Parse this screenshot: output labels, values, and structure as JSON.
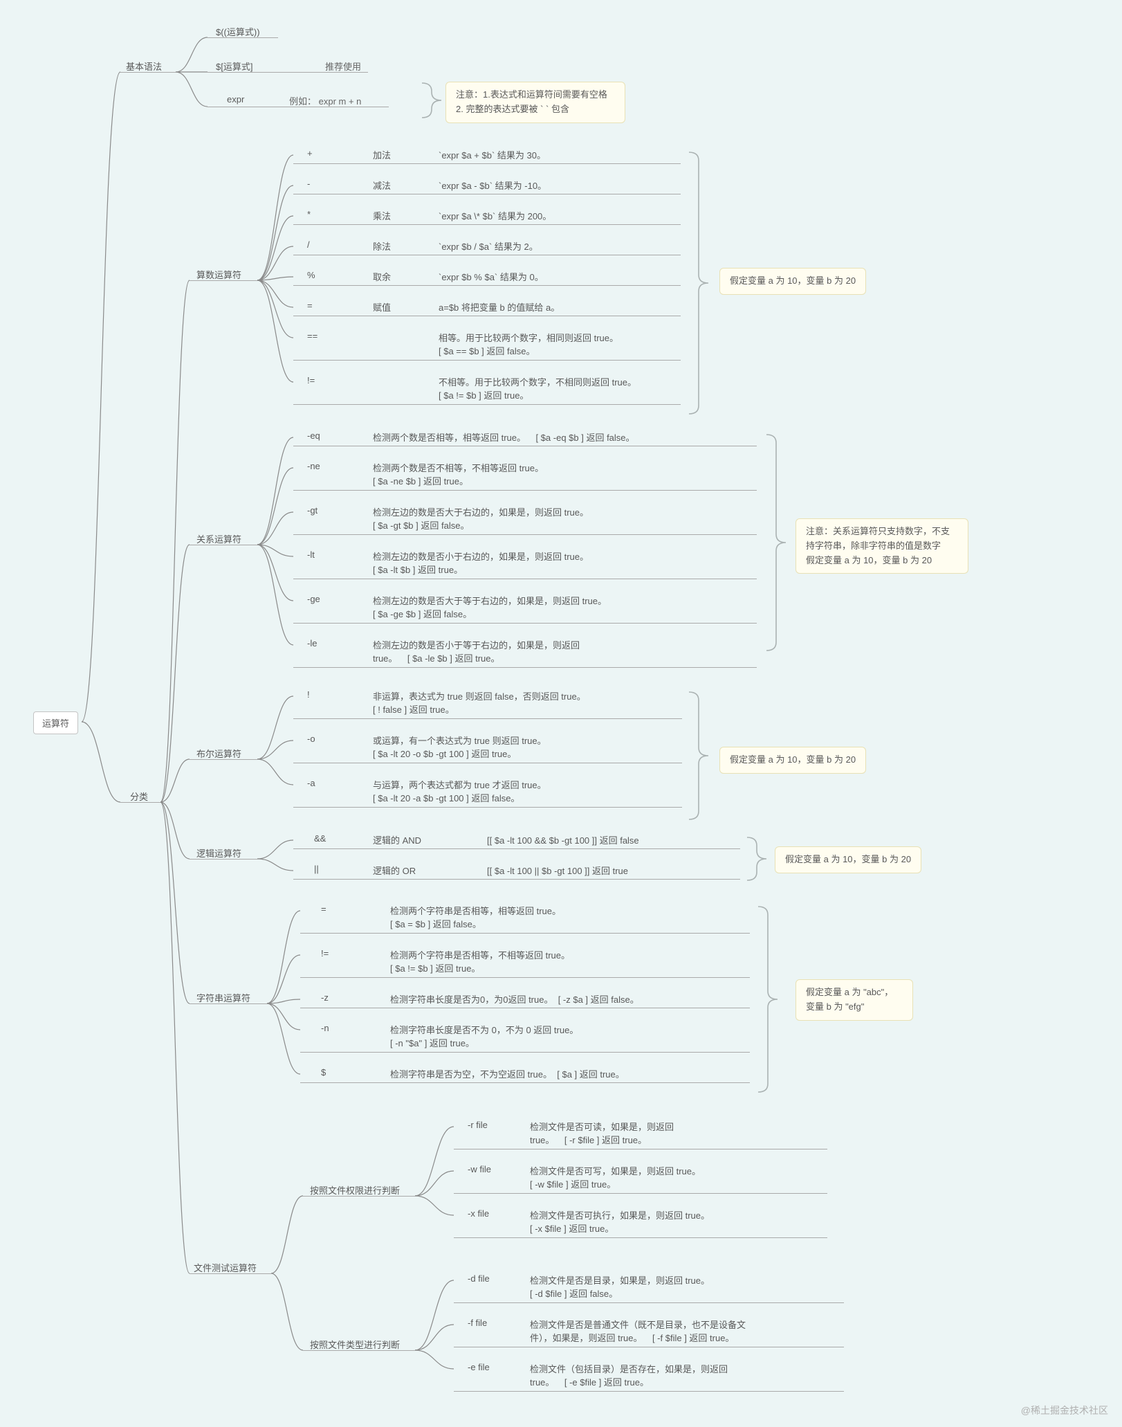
{
  "colors": {
    "bg": "#ecf5f5",
    "box_bg": "#ffffff",
    "box_border": "#c4c4c4",
    "note_bg": "#fffdf0",
    "note_border": "#e8e1b5",
    "line": "#8a8a8a",
    "text": "#595959"
  },
  "root": "运算符",
  "syntax": {
    "label": "基本语法",
    "a": "$((运算式))",
    "b": "$[运算式]",
    "b_note": "推荐使用",
    "c": "expr",
    "c_note": "例如： expr m + n",
    "warn": "注意：1.表达式和运算符间需要有空格\n2. 完整的表达式要被 ` ` 包含"
  },
  "category_label": "分类",
  "arith": {
    "label": "算数运算符",
    "assume": "假定变量 a 为 10，变量 b 为 20",
    "rows": [
      {
        "op": "+",
        "name": "加法",
        "desc": "`expr $a + $b` 结果为 30。"
      },
      {
        "op": "-",
        "name": "减法",
        "desc": "`expr $a - $b` 结果为 -10。"
      },
      {
        "op": "*",
        "name": "乘法",
        "desc": "`expr $a \\* $b` 结果为  200。"
      },
      {
        "op": "/",
        "name": "除法",
        "desc": "`expr $b / $a` 结果为 2。"
      },
      {
        "op": "%",
        "name": "取余",
        "desc": "`expr $b % $a` 结果为 0。"
      },
      {
        "op": "=",
        "name": "赋值",
        "desc": "a=$b 将把变量 b 的值赋给 a。"
      },
      {
        "op": "==",
        "name": "",
        "desc": "相等。用于比较两个数字，相同则返回 true。\n[ $a == $b ] 返回 false。"
      },
      {
        "op": "!=",
        "name": "",
        "desc": "不相等。用于比较两个数字，不相同则返回 true。\n[ $a != $b ] 返回 true。"
      }
    ]
  },
  "rel": {
    "label": "关系运算符",
    "assume": "注意：关系运算符只支持数字，不支持字符串，除非字符串的值是数字\n假定变量 a 为 10，变量 b 为 20",
    "rows": [
      {
        "op": "-eq",
        "desc": "检测两个数是否相等，相等返回 true。    [ $a -eq $b ] 返回 false。"
      },
      {
        "op": "-ne",
        "desc": "检测两个数是否不相等，不相等返回 true。\n[ $a -ne $b ] 返回 true。"
      },
      {
        "op": "-gt",
        "desc": "检测左边的数是否大于右边的，如果是，则返回 true。\n[ $a -gt $b ] 返回 false。"
      },
      {
        "op": "-lt",
        "desc": "检测左边的数是否小于右边的，如果是，则返回 true。\n[ $a -lt $b ] 返回 true。"
      },
      {
        "op": "-ge",
        "desc": "检测左边的数是否大于等于右边的，如果是，则返回 true。\n[ $a -ge $b ] 返回 false。"
      },
      {
        "op": "-le",
        "desc": "检测左边的数是否小于等于右边的，如果是，则返回\ntrue。    [ $a -le $b ] 返回 true。"
      }
    ]
  },
  "bool": {
    "label": "布尔运算符",
    "assume": "假定变量 a 为 10，变量 b 为 20",
    "rows": [
      {
        "op": "!",
        "desc": "非运算，表达式为 true 则返回 false，否则返回 true。\n[ ! false ] 返回 true。"
      },
      {
        "op": "-o",
        "desc": "或运算，有一个表达式为 true 则返回 true。\n[ $a -lt 20 -o $b -gt 100 ] 返回 true。"
      },
      {
        "op": "-a",
        "desc": "与运算，两个表达式都为 true 才返回 true。\n[ $a -lt 20 -a $b -gt 100 ] 返回 false。"
      }
    ]
  },
  "logic": {
    "label": "逻辑运算符",
    "assume": "假定变量 a 为 10，变量 b 为 20",
    "rows": [
      {
        "op": "&&",
        "name": "逻辑的 AND",
        "desc": "[[ $a -lt 100 && $b -gt 100 ]] 返回 false"
      },
      {
        "op": "||",
        "name": "逻辑的 OR",
        "desc": "[[ $a -lt 100 || $b -gt 100 ]] 返回 true"
      }
    ]
  },
  "string": {
    "label": "字符串运算符",
    "assume": "假定变量 a 为 \"abc\"，\n变量 b 为 \"efg\"",
    "rows": [
      {
        "op": "=",
        "desc": "检测两个字符串是否相等，相等返回 true。\n[ $a = $b ] 返回 false。"
      },
      {
        "op": "!=",
        "desc": "检测两个字符串是否相等，不相等返回 true。\n[ $a != $b ] 返回 true。"
      },
      {
        "op": "-z",
        "desc": "检测字符串长度是否为0，为0返回 true。  [ -z $a ] 返回 false。"
      },
      {
        "op": "-n",
        "desc": "检测字符串长度是否不为 0，不为 0 返回 true。\n[ -n \"$a\" ] 返回 true。"
      },
      {
        "op": "$",
        "desc": "检测字符串是否为空，不为空返回 true。  [ $a ] 返回 true。"
      }
    ]
  },
  "file": {
    "label": "文件测试运算符",
    "perm_label": "按照文件权限进行判断",
    "type_label": "按照文件类型进行判断",
    "perm": [
      {
        "op": "-r file",
        "desc": "检测文件是否可读，如果是，则返回\ntrue。    [ -r $file ] 返回 true。"
      },
      {
        "op": "-w file",
        "desc": "检测文件是否可写，如果是，则返回 true。\n[ -w $file ] 返回 true。"
      },
      {
        "op": "-x file",
        "desc": "检测文件是否可执行，如果是，则返回 true。\n[ -x $file ] 返回 true。"
      }
    ],
    "type": [
      {
        "op": "-d file",
        "desc": "检测文件是否是目录，如果是，则返回 true。\n[ -d $file ] 返回 false。"
      },
      {
        "op": "-f file",
        "desc": "检测文件是否是普通文件（既不是目录，也不是设备文\n件），如果是，则返回 true。    [ -f $file ] 返回 true。"
      },
      {
        "op": "-e file",
        "desc": "检测文件（包括目录）是否存在，如果是，则返回\ntrue。    [ -e $file ] 返回 true。"
      }
    ]
  },
  "watermark": "@稀土掘金技术社区"
}
